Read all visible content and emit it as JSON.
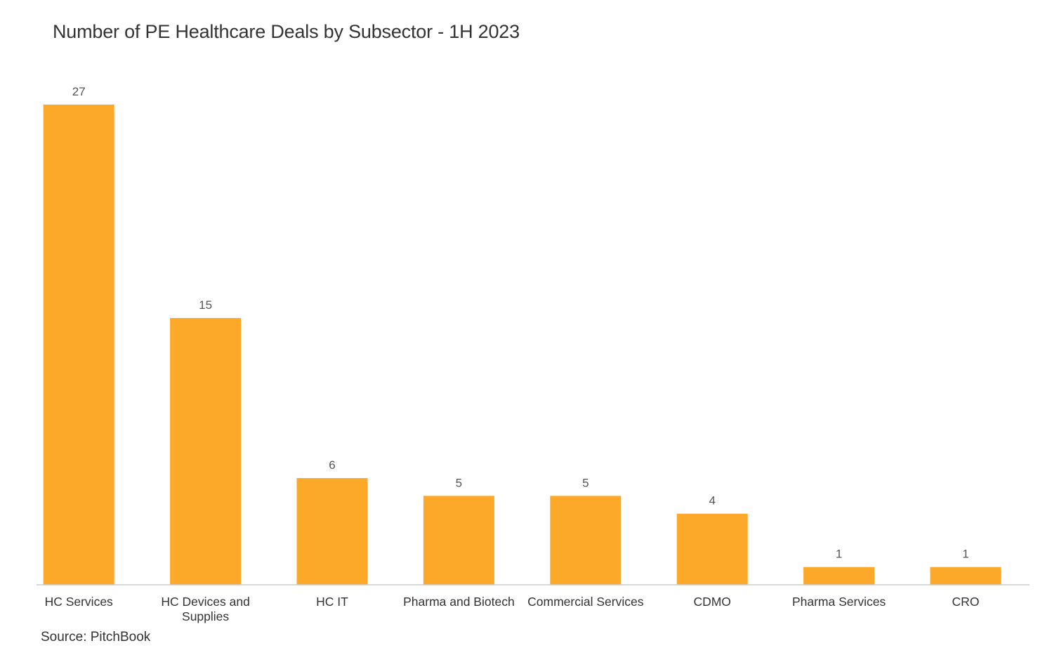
{
  "chart_data": {
    "type": "bar",
    "title": "Number of PE Healthcare Deals by Subsector - 1H 2023",
    "categories": [
      [
        "HC Services"
      ],
      [
        "HC Devices and",
        "Supplies"
      ],
      [
        "HC IT"
      ],
      [
        "Pharma and Biotech"
      ],
      [
        "Commercial Services"
      ],
      [
        "CDMO"
      ],
      [
        "Pharma Services"
      ],
      [
        "CRO"
      ]
    ],
    "values": [
      27,
      15,
      6,
      5,
      5,
      4,
      1,
      1
    ],
    "xlabel": "",
    "ylabel": "",
    "ylim": [
      0,
      27
    ],
    "grid": false,
    "legend": "none",
    "data_labels": true,
    "bar_color": "#FCA92A",
    "axis_color": "#cccccc"
  },
  "source": "Source: PitchBook"
}
